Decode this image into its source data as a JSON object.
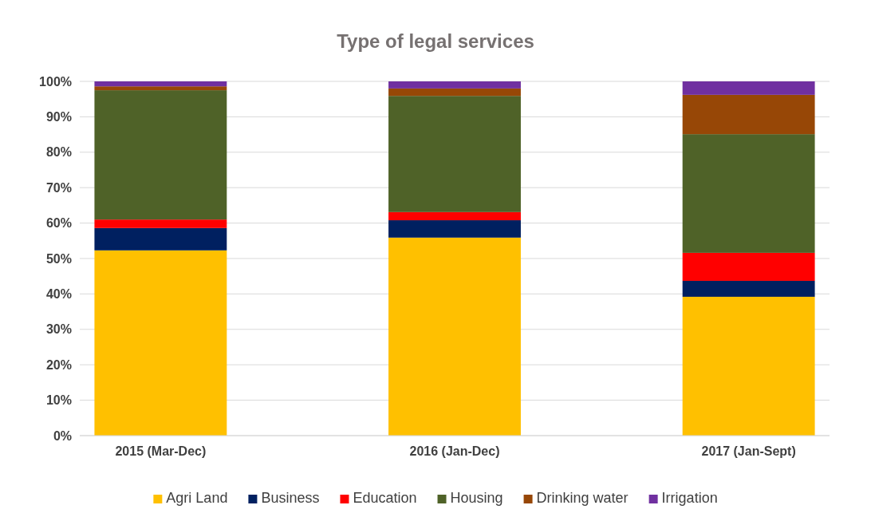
{
  "chart_data": {
    "type": "bar",
    "stacked": true,
    "title": "Type of legal services",
    "categories": [
      "2015 (Mar-Dec)",
      "2016 (Jan-Dec)",
      "2017 (Jan-Sept)"
    ],
    "series": [
      {
        "name": "Agri Land",
        "color": "#ffc000",
        "values": [
          52.3,
          55.9,
          39.2
        ]
      },
      {
        "name": "Business",
        "color": "#002060",
        "values": [
          6.3,
          4.9,
          4.5
        ]
      },
      {
        "name": "Education",
        "color": "#ff0000",
        "values": [
          2.4,
          2.3,
          7.9
        ]
      },
      {
        "name": "Housing",
        "color": "#4f6228",
        "values": [
          36.5,
          32.8,
          33.5
        ]
      },
      {
        "name": "Drinking water",
        "color": "#974706",
        "values": [
          1.1,
          2.1,
          11.1
        ]
      },
      {
        "name": "Irrigation",
        "color": "#7030a0",
        "values": [
          1.4,
          2.0,
          3.8
        ]
      }
    ],
    "ylim": [
      0,
      100
    ],
    "yticks": [
      {
        "value": 0,
        "label": "0%"
      },
      {
        "value": 10,
        "label": "10%"
      },
      {
        "value": 20,
        "label": "20%"
      },
      {
        "value": 30,
        "label": "30%"
      },
      {
        "value": 40,
        "label": "40%"
      },
      {
        "value": 50,
        "label": "50%"
      },
      {
        "value": 60,
        "label": "60%"
      },
      {
        "value": 70,
        "label": "70%"
      },
      {
        "value": 80,
        "label": "80%"
      },
      {
        "value": 90,
        "label": "90%"
      },
      {
        "value": 100,
        "label": "100%"
      }
    ],
    "grid": "y",
    "legend": "bottom"
  }
}
